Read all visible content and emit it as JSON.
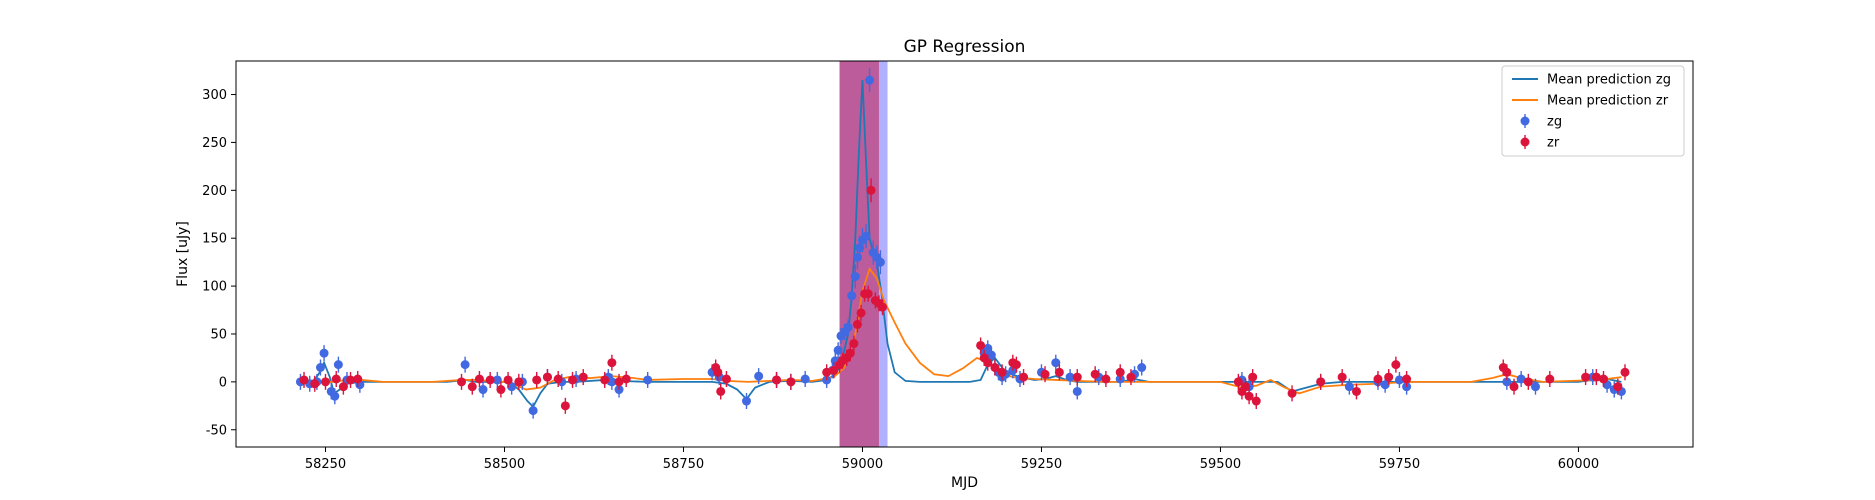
{
  "chart_data": {
    "type": "scatter",
    "title": "GP Regression",
    "xlabel": "MJD",
    "ylabel": "Flux [uJy]",
    "xlim": [
      58125,
      60160
    ],
    "ylim": [
      -68,
      335
    ],
    "xticks": [
      58250,
      58500,
      58750,
      59000,
      59250,
      59500,
      59750,
      60000
    ],
    "yticks": [
      -50,
      0,
      50,
      100,
      150,
      200,
      250,
      300
    ],
    "legend_position": "top-right",
    "legend": [
      {
        "label": "Mean prediction zg",
        "kind": "line",
        "color": "#1f77b4"
      },
      {
        "label": "Mean prediction zr",
        "kind": "line",
        "color": "#ff7f0e"
      },
      {
        "label": "zg",
        "kind": "errorbar-marker",
        "color": "#4169e1"
      },
      {
        "label": "zr",
        "kind": "errorbar-marker",
        "color": "#dc143c"
      }
    ],
    "highlight_spans": [
      {
        "x0": 58968,
        "x1": 59035,
        "color": "#7b7bff",
        "opacity": 0.6
      },
      {
        "x0": 58968,
        "x1": 59023,
        "color": "#c0407a",
        "opacity": 0.75
      }
    ],
    "series": [
      {
        "name": "Mean prediction zg",
        "kind": "line",
        "color": "#1f77b4",
        "x": [
          58215,
          58225,
          58235,
          58242,
          58248,
          58256,
          58262,
          58270,
          58280,
          58300,
          58350,
          58420,
          58445,
          58460,
          58475,
          58490,
          58500,
          58510,
          58520,
          58532,
          58540,
          58550,
          58560,
          58580,
          58600,
          58640,
          58660,
          58700,
          58750,
          58790,
          58810,
          58825,
          58838,
          58850,
          58870,
          58900,
          58930,
          58950,
          58962,
          58970,
          58980,
          58985,
          58990,
          58995,
          59000,
          59005,
          59010,
          59015,
          59020,
          59027,
          59035,
          59045,
          59060,
          59080,
          59120,
          59150,
          59165,
          59175,
          59185,
          59200,
          59220,
          59240,
          59255,
          59270,
          59285,
          59300,
          59320,
          59340,
          59360,
          59380,
          59400,
          59450,
          59500,
          59530,
          59560,
          59580,
          59600,
          59620,
          59640,
          59670,
          59700,
          59740,
          59780,
          59830,
          59880,
          59900,
          59930,
          59960,
          60000,
          60020,
          60040,
          60060
        ],
        "y": [
          0,
          0,
          2,
          10,
          20,
          5,
          -12,
          -8,
          -2,
          0,
          0,
          0,
          2,
          0,
          0,
          0,
          0,
          -2,
          -8,
          -20,
          -26,
          -12,
          -2,
          0,
          0,
          2,
          1,
          0,
          0,
          0,
          -2,
          -8,
          -18,
          -6,
          0,
          1,
          0,
          2,
          8,
          18,
          50,
          90,
          150,
          240,
          315,
          230,
          150,
          135,
          125,
          90,
          40,
          10,
          1,
          0,
          0,
          0,
          2,
          18,
          25,
          10,
          5,
          2,
          3,
          6,
          2,
          0,
          0,
          0,
          0,
          3,
          0,
          0,
          0,
          0,
          0,
          0,
          -10,
          -6,
          -2,
          0,
          0,
          0,
          0,
          0,
          0,
          0,
          0,
          0,
          0,
          2,
          3,
          0
        ]
      },
      {
        "name": "Mean prediction zr",
        "kind": "line",
        "color": "#ff7f0e",
        "x": [
          58215,
          58240,
          58260,
          58280,
          58300,
          58330,
          58360,
          58400,
          58440,
          58460,
          58480,
          58500,
          58515,
          58530,
          58550,
          58570,
          58590,
          58620,
          58650,
          58680,
          58700,
          58750,
          58790,
          58810,
          58840,
          58870,
          58900,
          58930,
          58960,
          58975,
          58990,
          59000,
          59010,
          59020,
          59030,
          59045,
          59060,
          59080,
          59100,
          59120,
          59140,
          59160,
          59175,
          59190,
          59210,
          59240,
          59270,
          59300,
          59340,
          59380,
          59420,
          59460,
          59500,
          59530,
          59550,
          59570,
          59590,
          59610,
          59640,
          59680,
          59720,
          59760,
          59800,
          59850,
          59880,
          59900,
          59920,
          59950,
          59990,
          60030,
          60060
        ],
        "y": [
          0,
          0,
          0,
          2,
          2,
          0,
          0,
          0,
          2,
          2,
          1,
          0,
          -3,
          -8,
          -6,
          2,
          5,
          4,
          6,
          4,
          2,
          3,
          3,
          1,
          0,
          1,
          2,
          1,
          5,
          15,
          50,
          95,
          118,
          108,
          85,
          62,
          40,
          20,
          8,
          6,
          14,
          25,
          20,
          10,
          5,
          3,
          2,
          1,
          0,
          0,
          0,
          0,
          0,
          -6,
          -4,
          2,
          -6,
          -12,
          -5,
          -3,
          -2,
          0,
          0,
          0,
          4,
          8,
          4,
          0,
          1,
          2,
          5
        ]
      },
      {
        "name": "zg",
        "kind": "errorbar-marker",
        "color": "#4169e1",
        "x": [
          58215,
          58228,
          58238,
          58243,
          58248,
          58258,
          58263,
          58268,
          58280,
          58298,
          58445,
          58470,
          58490,
          58510,
          58525,
          58540,
          58560,
          58580,
          58600,
          58645,
          58650,
          58660,
          58700,
          58790,
          58800,
          58838,
          58855,
          58880,
          58900,
          58920,
          58950,
          58958,
          58962,
          58966,
          58970,
          58975,
          58980,
          58985,
          58990,
          58993,
          58996,
          59000,
          59005,
          59010,
          59015,
          59020,
          59025,
          59170,
          59175,
          59180,
          59185,
          59190,
          59195,
          59200,
          59210,
          59220,
          59250,
          59270,
          59290,
          59300,
          59330,
          59360,
          59380,
          59390,
          59530,
          59540,
          59640,
          59680,
          59720,
          59730,
          59750,
          59760,
          59900,
          59920,
          59940,
          60020,
          60040,
          60050,
          60060
        ],
        "y": [
          0,
          -2,
          0,
          15,
          30,
          -10,
          -15,
          18,
          2,
          -3,
          18,
          -8,
          2,
          -5,
          0,
          -30,
          5,
          0,
          3,
          5,
          0,
          -8,
          2,
          10,
          5,
          -20,
          6,
          2,
          0,
          3,
          2,
          12,
          22,
          33,
          48,
          52,
          57,
          90,
          110,
          130,
          140,
          148,
          152,
          315,
          135,
          130,
          125,
          30,
          35,
          28,
          15,
          10,
          5,
          8,
          12,
          3,
          10,
          20,
          5,
          -10,
          5,
          3,
          8,
          15,
          2,
          -5,
          0,
          -5,
          0,
          -3,
          2,
          -5,
          0,
          3,
          -5,
          5,
          -3,
          -8,
          -10
        ]
      },
      {
        "name": "zr",
        "kind": "errorbar-marker",
        "color": "#dc143c",
        "x": [
          58220,
          58235,
          58250,
          58265,
          58275,
          58285,
          58295,
          58440,
          58455,
          58465,
          58480,
          58495,
          58505,
          58520,
          58545,
          58560,
          58575,
          58585,
          58595,
          58610,
          58640,
          58650,
          58660,
          58670,
          58795,
          58798,
          58802,
          58810,
          58880,
          58900,
          58950,
          58960,
          58968,
          58972,
          58978,
          58983,
          58988,
          58993,
          58998,
          59003,
          59008,
          59012,
          59018,
          59023,
          59028,
          59165,
          59170,
          59175,
          59185,
          59195,
          59210,
          59215,
          59225,
          59255,
          59275,
          59300,
          59325,
          59340,
          59360,
          59375,
          59525,
          59530,
          59535,
          59540,
          59545,
          59550,
          59600,
          59640,
          59670,
          59690,
          59720,
          59735,
          59745,
          59760,
          59895,
          59900,
          59910,
          59930,
          59960,
          60010,
          60025,
          60035,
          60055,
          60065
        ],
        "y": [
          2,
          -2,
          0,
          3,
          -5,
          2,
          3,
          0,
          -5,
          3,
          2,
          -8,
          2,
          0,
          2,
          5,
          3,
          -25,
          2,
          5,
          2,
          20,
          0,
          3,
          15,
          10,
          -10,
          3,
          2,
          0,
          10,
          12,
          18,
          22,
          25,
          30,
          40,
          60,
          72,
          92,
          92,
          200,
          85,
          82,
          78,
          38,
          25,
          20,
          15,
          10,
          20,
          18,
          5,
          8,
          10,
          5,
          8,
          3,
          10,
          5,
          0,
          -10,
          -5,
          -15,
          5,
          -20,
          -12,
          0,
          5,
          -10,
          3,
          5,
          18,
          3,
          15,
          10,
          -5,
          0,
          3,
          5,
          5,
          3,
          -5,
          10
        ]
      }
    ]
  }
}
